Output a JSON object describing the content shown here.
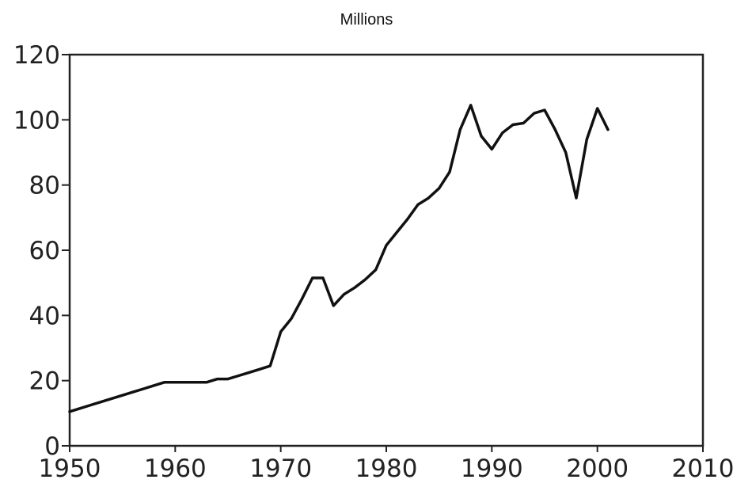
{
  "chart_data": {
    "type": "line",
    "title": "Millions",
    "xlabel": "",
    "ylabel": "",
    "xlim": [
      1950,
      2010
    ],
    "ylim": [
      0,
      120
    ],
    "x_ticks": [
      "1950",
      "1960",
      "1970",
      "1980",
      "1990",
      "2000",
      "2010"
    ],
    "y_ticks": [
      "0",
      "20",
      "40",
      "60",
      "80",
      "100",
      "120"
    ],
    "grid": false,
    "series": [
      {
        "color": "#111111",
        "x": [
          1950,
          1951,
          1952,
          1953,
          1954,
          1955,
          1956,
          1957,
          1958,
          1959,
          1960,
          1961,
          1962,
          1963,
          1964,
          1965,
          1966,
          1967,
          1968,
          1969,
          1970,
          1971,
          1972,
          1973,
          1974,
          1975,
          1976,
          1977,
          1978,
          1979,
          1980,
          1981,
          1982,
          1983,
          1984,
          1985,
          1986,
          1987,
          1988,
          1989,
          1990,
          1991,
          1992,
          1993,
          1994,
          1995,
          1996,
          1997,
          1998,
          1999,
          2000,
          2001
        ],
        "y": [
          10.5,
          11.5,
          12.5,
          13.5,
          14.5,
          15.5,
          16.5,
          17.5,
          18.5,
          19.5,
          19.5,
          19.5,
          19.5,
          19.5,
          20.5,
          20.5,
          21.5,
          22.5,
          23.5,
          24.5,
          35,
          39,
          45,
          51.5,
          51.5,
          43,
          46.5,
          48.5,
          51,
          54,
          61.5,
          65.5,
          69.5,
          74,
          76,
          79,
          84,
          97,
          104.5,
          95,
          91,
          96,
          98.5,
          99,
          102,
          103,
          97,
          90,
          76,
          94,
          103.5,
          97
        ]
      }
    ]
  }
}
